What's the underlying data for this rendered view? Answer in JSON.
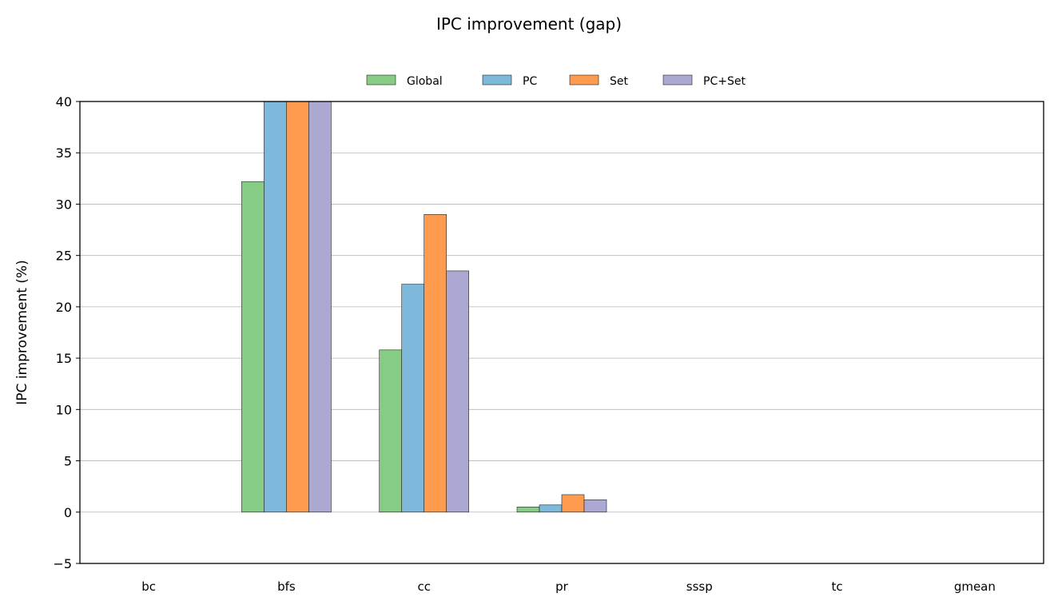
{
  "chart_data": {
    "type": "bar",
    "title": "IPC improvement (gap)",
    "xlabel": "",
    "ylabel": "IPC improvement (%)",
    "ylim": [
      -5,
      40
    ],
    "yticks": [
      -5,
      0,
      5,
      10,
      15,
      20,
      25,
      30,
      35,
      40
    ],
    "grid": true,
    "legend_position": "top-center",
    "categories": [
      "bc",
      "bfs",
      "cc",
      "pr",
      "sssp",
      "tc",
      "gmean"
    ],
    "series": [
      {
        "name": "Global",
        "color": "#86cc84",
        "values": [
          0,
          32.2,
          15.8,
          0.5,
          0,
          0,
          0
        ]
      },
      {
        "name": "PC",
        "color": "#7eb8da",
        "values": [
          0,
          40,
          22.2,
          0.7,
          0,
          0,
          0
        ]
      },
      {
        "name": "Set",
        "color": "#ff9b4e",
        "values": [
          0,
          40,
          29.0,
          1.7,
          0,
          0,
          0
        ]
      },
      {
        "name": "PC+Set",
        "color": "#aba8d2",
        "values": [
          0,
          40,
          23.5,
          1.2,
          0,
          0,
          0
        ]
      }
    ]
  }
}
